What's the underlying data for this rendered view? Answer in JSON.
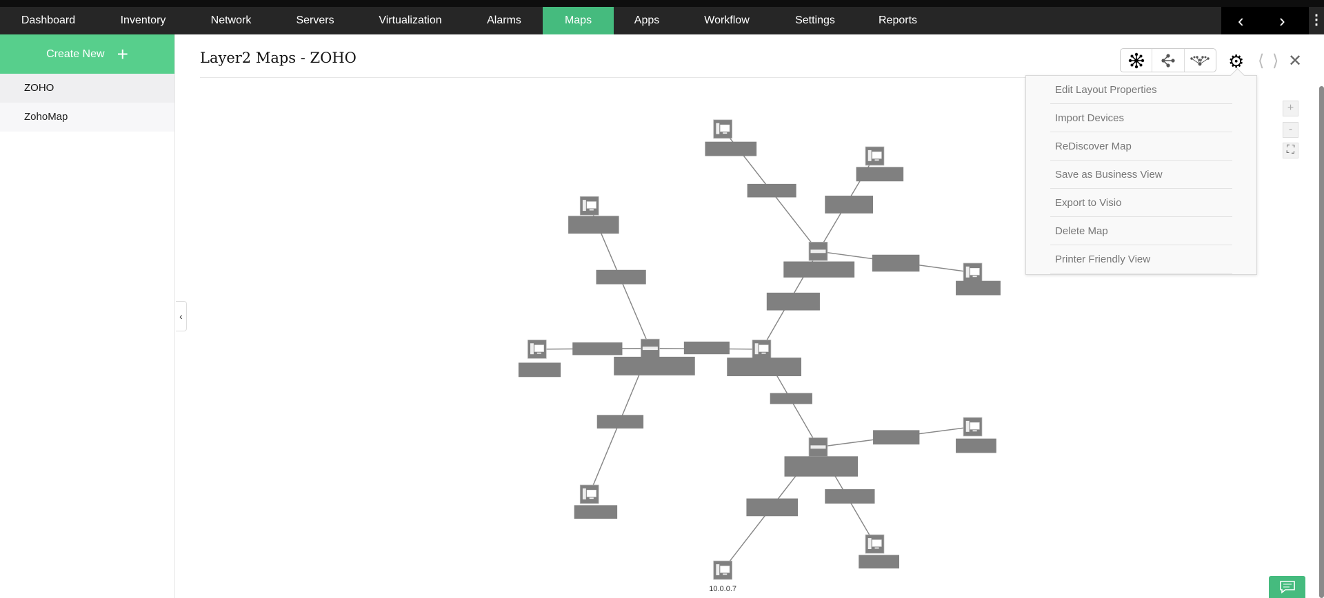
{
  "nav": {
    "items": [
      "Dashboard",
      "Inventory",
      "Network",
      "Servers",
      "Virtualization",
      "Alarms",
      "Maps",
      "Apps",
      "Workflow",
      "Settings",
      "Reports"
    ],
    "active": "Maps"
  },
  "sidebar": {
    "create_label": "Create New",
    "items": [
      "ZOHO",
      "ZohoMap"
    ],
    "active": "ZOHO"
  },
  "header": {
    "title": "Layer2 Maps - ZOHO"
  },
  "settings_menu": {
    "items": [
      "Edit Layout Properties",
      "Import Devices",
      "ReDiscover Map",
      "Save as Business View",
      "Export to Visio",
      "Delete Map",
      "Printer Friendly View"
    ]
  },
  "zoom_controls": {
    "zoom_in": "+",
    "zoom_out": "-"
  },
  "map": {
    "visible_device_label": "10.0.0.7"
  },
  "colors": {
    "accent": "#45bb7e",
    "create_button": "#57cf8c",
    "nav_bg": "#262626",
    "node": "#808080"
  }
}
